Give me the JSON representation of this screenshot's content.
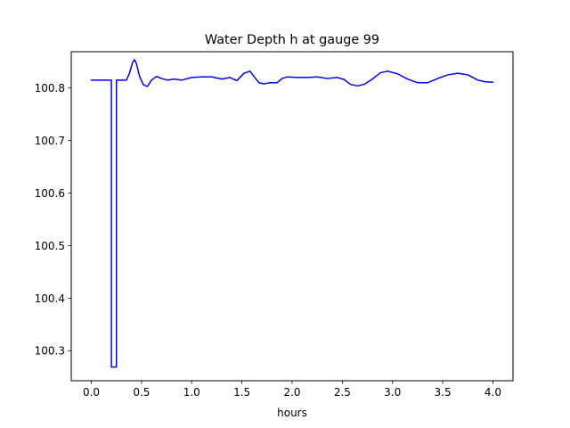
{
  "chart_data": {
    "type": "line",
    "title": "Water Depth h at gauge 99",
    "xlabel": "hours",
    "ylabel": "",
    "xlim": [
      -0.2,
      4.2
    ],
    "ylim": [
      100.243,
      100.869
    ],
    "xticks": [
      0.0,
      0.5,
      1.0,
      1.5,
      2.0,
      2.5,
      3.0,
      3.5,
      4.0
    ],
    "xtick_labels": [
      "0.0",
      "0.5",
      "1.0",
      "1.5",
      "2.0",
      "2.5",
      "3.0",
      "3.5",
      "4.0"
    ],
    "yticks": [
      100.3,
      100.4,
      100.5,
      100.6,
      100.7,
      100.8
    ],
    "ytick_labels": [
      "100.3",
      "100.4",
      "100.5",
      "100.6",
      "100.7",
      "100.8"
    ],
    "grid": false,
    "series": [
      {
        "color": "#0000ff",
        "x": [
          0.0,
          0.1,
          0.2,
          0.2,
          0.25,
          0.25,
          0.3,
          0.35,
          0.38,
          0.41,
          0.43,
          0.45,
          0.48,
          0.52,
          0.56,
          0.6,
          0.65,
          0.7,
          0.76,
          0.82,
          0.9,
          1.0,
          1.1,
          1.2,
          1.3,
          1.38,
          1.45,
          1.52,
          1.58,
          1.62,
          1.67,
          1.72,
          1.78,
          1.85,
          1.9,
          1.95,
          2.05,
          2.15,
          2.25,
          2.35,
          2.45,
          2.52,
          2.58,
          2.65,
          2.72,
          2.8,
          2.88,
          2.95,
          3.05,
          3.15,
          3.25,
          3.35,
          3.45,
          3.55,
          3.65,
          3.75,
          3.85,
          3.92,
          4.0
        ],
        "values": [
          100.815,
          100.815,
          100.815,
          100.269,
          100.269,
          100.815,
          100.815,
          100.815,
          100.828,
          100.848,
          100.854,
          100.846,
          100.822,
          100.806,
          100.803,
          100.815,
          100.822,
          100.818,
          100.815,
          100.817,
          100.815,
          100.82,
          100.821,
          100.821,
          100.817,
          100.82,
          100.814,
          100.828,
          100.832,
          100.822,
          100.81,
          100.808,
          100.81,
          100.81,
          100.818,
          100.821,
          100.82,
          100.82,
          100.821,
          100.818,
          100.82,
          100.816,
          100.807,
          100.804,
          100.807,
          100.817,
          100.829,
          100.832,
          100.827,
          100.817,
          100.81,
          100.81,
          100.818,
          100.825,
          100.828,
          100.825,
          100.815,
          100.812,
          100.811
        ]
      }
    ]
  }
}
